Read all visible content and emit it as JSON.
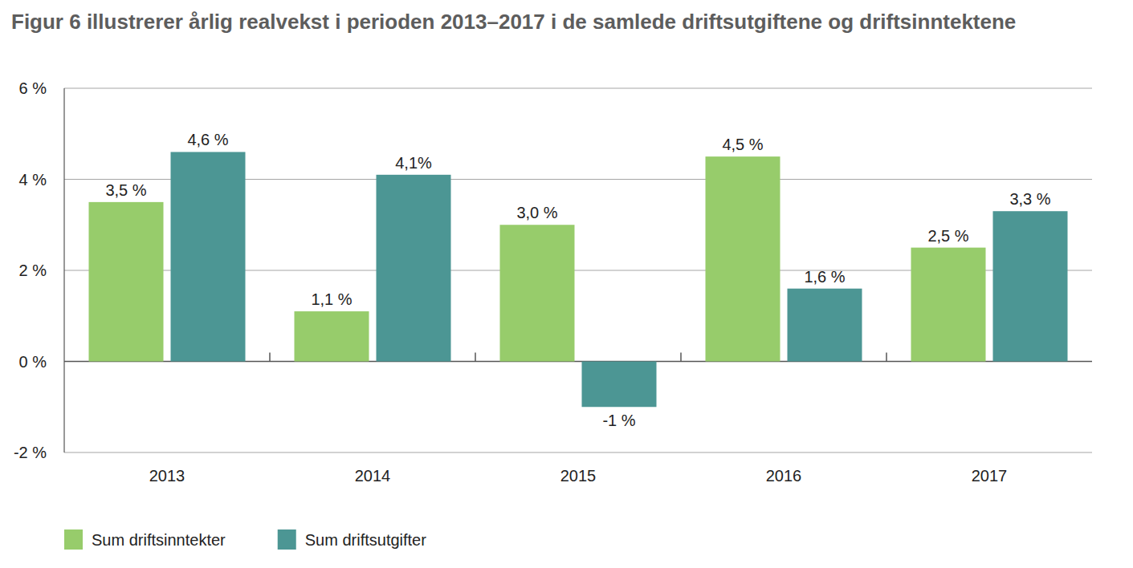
{
  "chart_data": {
    "type": "bar",
    "title": "Figur 6 illustrerer årlig realvekst i perioden 2013–2017 i de samlede driftsutgiftene og driftsinntektene",
    "categories": [
      "2013",
      "2014",
      "2015",
      "2016",
      "2017"
    ],
    "series": [
      {
        "name": "Sum driftsinntekter",
        "color": "#97cc6b",
        "values": [
          3.5,
          1.1,
          3.0,
          4.5,
          2.5
        ],
        "value_labels": [
          "3,5 %",
          "1,1 %",
          "3,0 %",
          "4,5 %",
          "2,5 %"
        ]
      },
      {
        "name": "Sum driftsutgifter",
        "color": "#4c9694",
        "values": [
          4.6,
          4.1,
          -1,
          1.6,
          3.3
        ],
        "value_labels": [
          "4,6 %",
          "4,1%",
          "-1 %",
          "1,6 %",
          "3,3 %"
        ]
      }
    ],
    "ylim": [
      -2,
      6
    ],
    "yticks": [
      {
        "value": -2,
        "label": "-2 %"
      },
      {
        "value": 0,
        "label": "0 %"
      },
      {
        "value": 2,
        "label": "2 %"
      },
      {
        "value": 4,
        "label": "4 %"
      },
      {
        "value": 6,
        "label": "6 %"
      }
    ],
    "grid": true,
    "data_labels": true,
    "legend": "bottom-left"
  }
}
